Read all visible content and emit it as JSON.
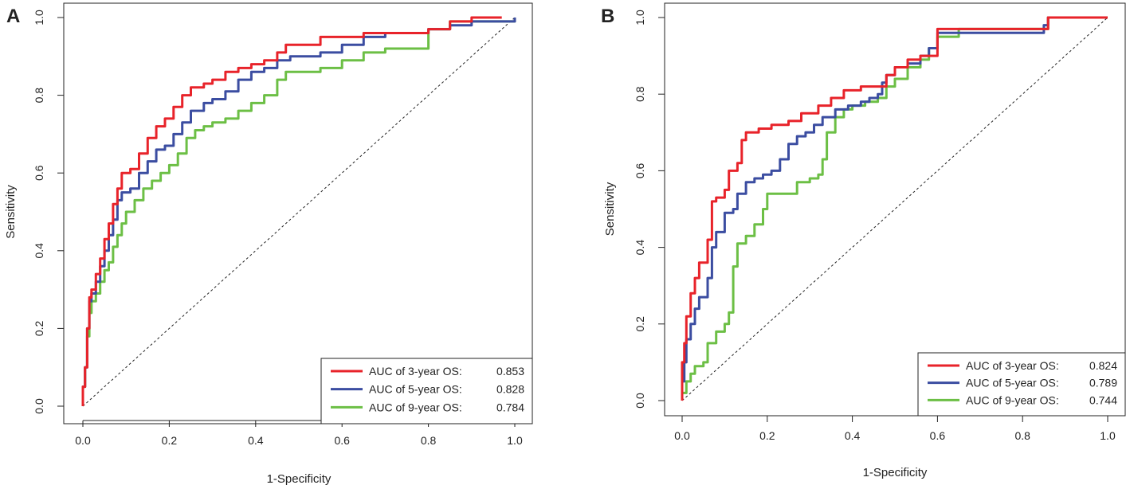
{
  "chart_data": [
    {
      "panel_label": "A",
      "type": "line",
      "xlabel": "1-Specificity",
      "ylabel": "Sensitivity",
      "xlim": [
        0,
        1
      ],
      "ylim": [
        0,
        1
      ],
      "xticks": [
        "0.0",
        "0.2",
        "0.4",
        "0.6",
        "0.8",
        "1.0"
      ],
      "yticks": [
        "0.0",
        "0.2",
        "0.4",
        "0.6",
        "0.8",
        "1.0"
      ],
      "legend_position": "bottom-right",
      "diagonal_reference": true,
      "series": [
        {
          "name": "AUC of 3-year OS:",
          "auc": "0.853",
          "color": "#e8232a",
          "points": [
            [
              0,
              0
            ],
            [
              0,
              0.05
            ],
            [
              0.005,
              0.1
            ],
            [
              0.01,
              0.2
            ],
            [
              0.015,
              0.28
            ],
            [
              0.02,
              0.3
            ],
            [
              0.03,
              0.34
            ],
            [
              0.04,
              0.38
            ],
            [
              0.05,
              0.43
            ],
            [
              0.06,
              0.47
            ],
            [
              0.07,
              0.52
            ],
            [
              0.08,
              0.56
            ],
            [
              0.09,
              0.6
            ],
            [
              0.11,
              0.61
            ],
            [
              0.13,
              0.65
            ],
            [
              0.15,
              0.69
            ],
            [
              0.17,
              0.72
            ],
            [
              0.19,
              0.74
            ],
            [
              0.21,
              0.77
            ],
            [
              0.23,
              0.8
            ],
            [
              0.25,
              0.82
            ],
            [
              0.28,
              0.83
            ],
            [
              0.3,
              0.84
            ],
            [
              0.33,
              0.86
            ],
            [
              0.36,
              0.87
            ],
            [
              0.39,
              0.88
            ],
            [
              0.42,
              0.89
            ],
            [
              0.45,
              0.91
            ],
            [
              0.47,
              0.93
            ],
            [
              0.5,
              0.93
            ],
            [
              0.55,
              0.95
            ],
            [
              0.6,
              0.95
            ],
            [
              0.65,
              0.96
            ],
            [
              0.7,
              0.96
            ],
            [
              0.75,
              0.96
            ],
            [
              0.8,
              0.97
            ],
            [
              0.85,
              0.99
            ],
            [
              0.9,
              1.0
            ],
            [
              0.95,
              1.0
            ],
            [
              0.97,
              1.0
            ]
          ]
        },
        {
          "name": "AUC of 5-year OS:",
          "auc": "0.828",
          "color": "#3b4da1",
          "points": [
            [
              0,
              0
            ],
            [
              0,
              0.05
            ],
            [
              0.005,
              0.1
            ],
            [
              0.01,
              0.2
            ],
            [
              0.015,
              0.27
            ],
            [
              0.02,
              0.29
            ],
            [
              0.03,
              0.32
            ],
            [
              0.04,
              0.36
            ],
            [
              0.05,
              0.4
            ],
            [
              0.06,
              0.44
            ],
            [
              0.07,
              0.48
            ],
            [
              0.08,
              0.53
            ],
            [
              0.09,
              0.55
            ],
            [
              0.11,
              0.56
            ],
            [
              0.13,
              0.6
            ],
            [
              0.15,
              0.63
            ],
            [
              0.17,
              0.66
            ],
            [
              0.19,
              0.67
            ],
            [
              0.21,
              0.7
            ],
            [
              0.23,
              0.73
            ],
            [
              0.25,
              0.76
            ],
            [
              0.28,
              0.78
            ],
            [
              0.3,
              0.79
            ],
            [
              0.33,
              0.81
            ],
            [
              0.36,
              0.84
            ],
            [
              0.39,
              0.86
            ],
            [
              0.42,
              0.87
            ],
            [
              0.45,
              0.89
            ],
            [
              0.48,
              0.9
            ],
            [
              0.55,
              0.91
            ],
            [
              0.6,
              0.93
            ],
            [
              0.65,
              0.95
            ],
            [
              0.7,
              0.96
            ],
            [
              0.75,
              0.96
            ],
            [
              0.8,
              0.97
            ],
            [
              0.85,
              0.98
            ],
            [
              0.9,
              0.99
            ],
            [
              0.95,
              0.99
            ],
            [
              1.0,
              1.0
            ]
          ]
        },
        {
          "name": "AUC of 9-year OS:",
          "auc": "0.784",
          "color": "#6cbf45",
          "points": [
            [
              0,
              0
            ],
            [
              0,
              0.05
            ],
            [
              0.005,
              0.1
            ],
            [
              0.01,
              0.18
            ],
            [
              0.015,
              0.24
            ],
            [
              0.02,
              0.27
            ],
            [
              0.03,
              0.29
            ],
            [
              0.04,
              0.32
            ],
            [
              0.05,
              0.35
            ],
            [
              0.06,
              0.37
            ],
            [
              0.07,
              0.41
            ],
            [
              0.08,
              0.44
            ],
            [
              0.09,
              0.47
            ],
            [
              0.1,
              0.5
            ],
            [
              0.12,
              0.53
            ],
            [
              0.14,
              0.56
            ],
            [
              0.16,
              0.58
            ],
            [
              0.18,
              0.6
            ],
            [
              0.2,
              0.62
            ],
            [
              0.22,
              0.65
            ],
            [
              0.24,
              0.69
            ],
            [
              0.26,
              0.71
            ],
            [
              0.28,
              0.72
            ],
            [
              0.3,
              0.73
            ],
            [
              0.33,
              0.74
            ],
            [
              0.36,
              0.76
            ],
            [
              0.39,
              0.78
            ],
            [
              0.42,
              0.8
            ],
            [
              0.45,
              0.84
            ],
            [
              0.47,
              0.86
            ],
            [
              0.5,
              0.86
            ],
            [
              0.55,
              0.87
            ],
            [
              0.6,
              0.89
            ],
            [
              0.65,
              0.91
            ],
            [
              0.7,
              0.92
            ],
            [
              0.75,
              0.92
            ],
            [
              0.78,
              0.92
            ],
            [
              0.8,
              0.97
            ],
            [
              0.85,
              0.99
            ],
            [
              0.9,
              0.99
            ],
            [
              0.95,
              0.99
            ],
            [
              1.0,
              1.0
            ]
          ]
        }
      ]
    },
    {
      "panel_label": "B",
      "type": "line",
      "xlabel": "1-Specificity",
      "ylabel": "Sensitivity",
      "xlim": [
        0,
        1
      ],
      "ylim": [
        0,
        1
      ],
      "xticks": [
        "0.0",
        "0.2",
        "0.4",
        "0.6",
        "0.8",
        "1.0"
      ],
      "yticks": [
        "0.0",
        "0.2",
        "0.4",
        "0.6",
        "0.8",
        "1.0"
      ],
      "legend_position": "bottom-right",
      "diagonal_reference": true,
      "series": [
        {
          "name": "AUC of 3-year OS:",
          "auc": "0.824",
          "color": "#e8232a",
          "points": [
            [
              0,
              0
            ],
            [
              0,
              0.1
            ],
            [
              0.005,
              0.15
            ],
            [
              0.01,
              0.22
            ],
            [
              0.02,
              0.28
            ],
            [
              0.03,
              0.32
            ],
            [
              0.04,
              0.36
            ],
            [
              0.06,
              0.42
            ],
            [
              0.07,
              0.52
            ],
            [
              0.08,
              0.53
            ],
            [
              0.1,
              0.55
            ],
            [
              0.11,
              0.6
            ],
            [
              0.13,
              0.62
            ],
            [
              0.14,
              0.68
            ],
            [
              0.15,
              0.7
            ],
            [
              0.18,
              0.71
            ],
            [
              0.21,
              0.72
            ],
            [
              0.25,
              0.73
            ],
            [
              0.28,
              0.75
            ],
            [
              0.32,
              0.77
            ],
            [
              0.35,
              0.79
            ],
            [
              0.38,
              0.81
            ],
            [
              0.42,
              0.82
            ],
            [
              0.46,
              0.82
            ],
            [
              0.48,
              0.85
            ],
            [
              0.5,
              0.87
            ],
            [
              0.53,
              0.89
            ],
            [
              0.56,
              0.9
            ],
            [
              0.6,
              0.97
            ],
            [
              0.65,
              0.97
            ],
            [
              0.7,
              0.97
            ],
            [
              0.75,
              0.97
            ],
            [
              0.8,
              0.97
            ],
            [
              0.85,
              0.97
            ],
            [
              0.86,
              1.0
            ],
            [
              0.9,
              1.0
            ],
            [
              1.0,
              1.0
            ]
          ]
        },
        {
          "name": "AUC of 5-year OS:",
          "auc": "0.789",
          "color": "#3b4da1",
          "points": [
            [
              0,
              0
            ],
            [
              0,
              0.05
            ],
            [
              0.005,
              0.1
            ],
            [
              0.01,
              0.16
            ],
            [
              0.02,
              0.2
            ],
            [
              0.03,
              0.24
            ],
            [
              0.04,
              0.27
            ],
            [
              0.06,
              0.32
            ],
            [
              0.07,
              0.4
            ],
            [
              0.08,
              0.44
            ],
            [
              0.1,
              0.49
            ],
            [
              0.12,
              0.5
            ],
            [
              0.13,
              0.54
            ],
            [
              0.15,
              0.57
            ],
            [
              0.17,
              0.58
            ],
            [
              0.19,
              0.59
            ],
            [
              0.21,
              0.6
            ],
            [
              0.23,
              0.63
            ],
            [
              0.25,
              0.67
            ],
            [
              0.27,
              0.69
            ],
            [
              0.29,
              0.7
            ],
            [
              0.31,
              0.72
            ],
            [
              0.33,
              0.74
            ],
            [
              0.36,
              0.76
            ],
            [
              0.39,
              0.77
            ],
            [
              0.42,
              0.78
            ],
            [
              0.44,
              0.79
            ],
            [
              0.46,
              0.8
            ],
            [
              0.47,
              0.83
            ],
            [
              0.48,
              0.85
            ],
            [
              0.5,
              0.87
            ],
            [
              0.53,
              0.88
            ],
            [
              0.56,
              0.9
            ],
            [
              0.58,
              0.92
            ],
            [
              0.6,
              0.96
            ],
            [
              0.65,
              0.96
            ],
            [
              0.7,
              0.96
            ],
            [
              0.75,
              0.96
            ],
            [
              0.8,
              0.96
            ],
            [
              0.85,
              0.98
            ],
            [
              0.86,
              1.0
            ],
            [
              0.9,
              1.0
            ],
            [
              1.0,
              1.0
            ]
          ]
        },
        {
          "name": "AUC of 9-year OS:",
          "auc": "0.744",
          "color": "#6cbf45",
          "points": [
            [
              0,
              0
            ],
            [
              0,
              0.02
            ],
            [
              0.01,
              0.05
            ],
            [
              0.02,
              0.07
            ],
            [
              0.03,
              0.09
            ],
            [
              0.05,
              0.1
            ],
            [
              0.06,
              0.15
            ],
            [
              0.08,
              0.18
            ],
            [
              0.1,
              0.2
            ],
            [
              0.11,
              0.23
            ],
            [
              0.12,
              0.35
            ],
            [
              0.13,
              0.41
            ],
            [
              0.15,
              0.43
            ],
            [
              0.17,
              0.46
            ],
            [
              0.19,
              0.5
            ],
            [
              0.2,
              0.54
            ],
            [
              0.23,
              0.54
            ],
            [
              0.25,
              0.54
            ],
            [
              0.27,
              0.57
            ],
            [
              0.3,
              0.58
            ],
            [
              0.32,
              0.59
            ],
            [
              0.33,
              0.63
            ],
            [
              0.34,
              0.7
            ],
            [
              0.36,
              0.74
            ],
            [
              0.38,
              0.76
            ],
            [
              0.4,
              0.77
            ],
            [
              0.43,
              0.78
            ],
            [
              0.46,
              0.79
            ],
            [
              0.48,
              0.82
            ],
            [
              0.5,
              0.84
            ],
            [
              0.53,
              0.87
            ],
            [
              0.56,
              0.89
            ],
            [
              0.58,
              0.92
            ],
            [
              0.6,
              0.95
            ],
            [
              0.65,
              0.97
            ],
            [
              0.7,
              0.97
            ],
            [
              0.75,
              0.97
            ],
            [
              0.8,
              0.97
            ],
            [
              0.85,
              0.97
            ],
            [
              0.86,
              1.0
            ],
            [
              0.9,
              1.0
            ],
            [
              1.0,
              1.0
            ]
          ]
        }
      ]
    }
  ]
}
